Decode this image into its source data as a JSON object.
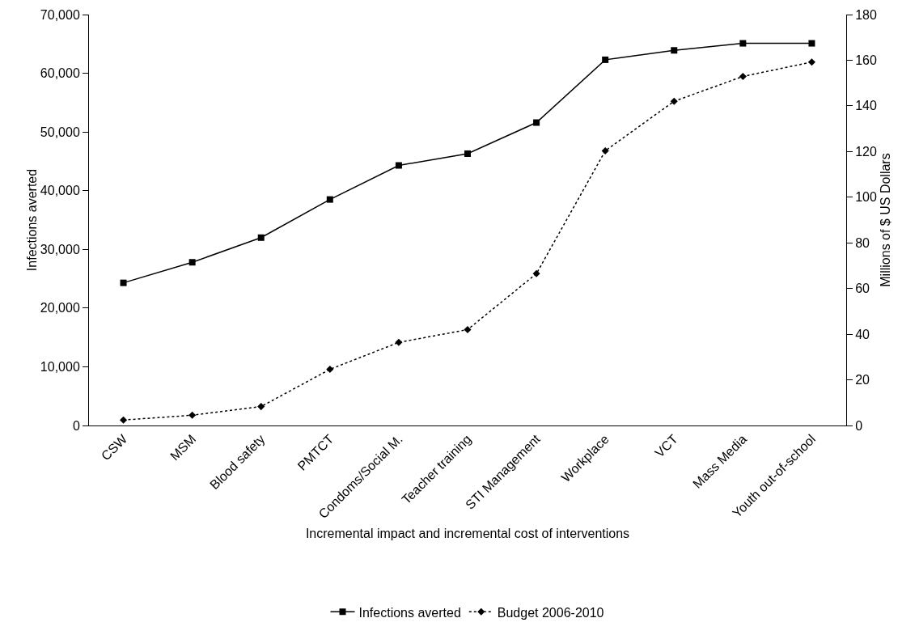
{
  "chart_data": {
    "type": "line",
    "xlabel": "Incremental impact and incremental cost of interventions",
    "ylabel": "Infections averted",
    "y2label": "Millions of $ US Dollars",
    "categories": [
      "CSW",
      "MSM",
      "Blood safety",
      "PMTCT",
      "Condoms/Social M.",
      "Teacher training",
      "STI Management",
      "Workplace",
      "VCT",
      "Mass Media",
      "Youth out-of-school"
    ],
    "series": [
      {
        "name": "Infections averted",
        "color": "#000000",
        "marker": "square",
        "line_style": "solid",
        "values": [
          24300,
          27800,
          32000,
          38500,
          44300,
          46300,
          51600,
          62300,
          63900,
          65100,
          65100
        ]
      },
      {
        "name": "Budget 2006-2010",
        "color": "#000000",
        "marker": "diamond",
        "line_style": "dotted",
        "axis": "y2",
        "values": [
          2.4,
          4.5,
          8.3,
          24.6,
          36.4,
          42,
          66.5,
          120.3,
          142,
          152.9,
          159.2
        ]
      }
    ],
    "ylim": [
      0,
      70000
    ],
    "yticks": [
      {
        "value": 0,
        "label": "0"
      },
      {
        "value": 10000,
        "label": "10,000"
      },
      {
        "value": 20000,
        "label": "20,000"
      },
      {
        "value": 30000,
        "label": "30,000"
      },
      {
        "value": 40000,
        "label": "40,000"
      },
      {
        "value": 50000,
        "label": "50,000"
      },
      {
        "value": 60000,
        "label": "60,000"
      },
      {
        "value": 70000,
        "label": "70,000"
      }
    ],
    "y2lim": [
      0,
      180
    ],
    "y2ticks": [
      0,
      20,
      40,
      60,
      80,
      100,
      120,
      140,
      160,
      180
    ],
    "grid": false,
    "legend": "bottom"
  }
}
